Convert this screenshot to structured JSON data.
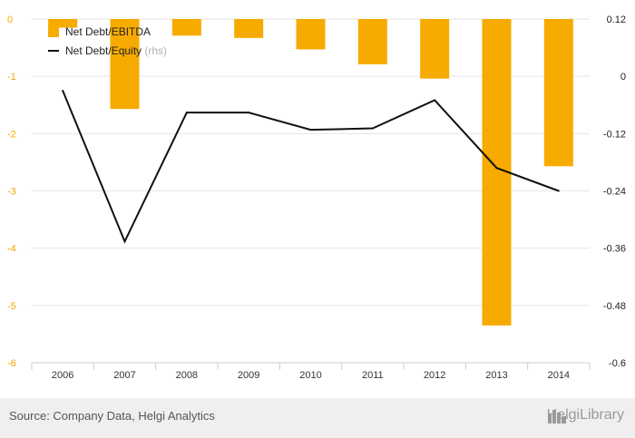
{
  "chart_data": {
    "type": "bar",
    "categories": [
      "2006",
      "2007",
      "2008",
      "2009",
      "2010",
      "2011",
      "2012",
      "2013",
      "2014"
    ],
    "series": [
      {
        "name": "Net Debt/EBITDA",
        "kind": "bar",
        "axis": "left",
        "color": "#f7ab00",
        "values": [
          -0.15,
          -1.57,
          -0.29,
          -0.33,
          -0.53,
          -0.79,
          -1.04,
          -5.35,
          -2.57
        ]
      },
      {
        "name": "Net Debt/Equity",
        "rhs_note": "(rhs)",
        "kind": "line",
        "axis": "right",
        "color": "#111111",
        "values": [
          -0.03,
          -0.346,
          -0.076,
          -0.076,
          -0.112,
          -0.109,
          -0.05,
          -0.192,
          -0.24
        ]
      }
    ],
    "left_axis": {
      "ylim": [
        -6,
        0
      ],
      "ticks": [
        0,
        -1,
        -2,
        -3,
        -4,
        -5,
        -6
      ],
      "tick_labels": [
        "0",
        "-1",
        "-2",
        "-3",
        "-4",
        "-5",
        "-6"
      ],
      "color": "#f5a800"
    },
    "right_axis": {
      "ylim": [
        -0.6,
        0.12
      ],
      "ticks": [
        0.12,
        0,
        -0.12,
        -0.24,
        -0.36,
        -0.48,
        -0.6
      ],
      "tick_labels": [
        "0.12",
        "0",
        "-0.12",
        "-0.24",
        "-0.36",
        "-0.48",
        "-0.6"
      ]
    },
    "grid": true,
    "legend_position": "top-left"
  },
  "footer": {
    "source": "Source: Company Data, Helgi Analytics",
    "brand": "HelgiLibrary"
  },
  "icons": {
    "brand_icon": "city-skyline-icon"
  }
}
